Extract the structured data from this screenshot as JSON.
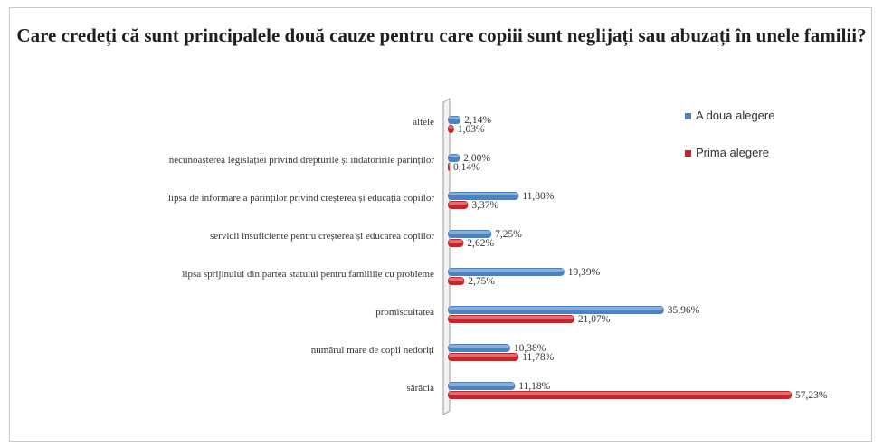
{
  "chart_data": {
    "type": "bar",
    "orientation": "horizontal",
    "title": "Care credeți că sunt principalele două cauze pentru care copiii sunt neglijați sau abuzați în unele familii?",
    "categories": [
      "altele",
      "necunoașterea legislației privind drepturile și îndatoririle părinților",
      "lipsa de informare a părinților privind creșterea și educația copiilor",
      "servicii insuficiente pentru creșterea și educarea copiilor",
      "lipsa sprijinului din partea statului pentru familiile cu probleme",
      "promiscuitatea",
      "numărul mare de copii nedoriți",
      "sărăcia"
    ],
    "series": [
      {
        "name": "A doua alegere",
        "color": "#4f81bd",
        "values": [
          2.14,
          2.0,
          11.8,
          7.25,
          19.39,
          35.96,
          10.38,
          11.18
        ],
        "labels": [
          "2,14%",
          "2,00%",
          "11,80%",
          "7,25%",
          "19,39%",
          "35,96%",
          "10,38%",
          "11,18%"
        ]
      },
      {
        "name": "Prima alegere",
        "color": "#c0282d",
        "values": [
          1.03,
          0.14,
          3.37,
          2.62,
          2.75,
          21.07,
          11.78,
          57.23
        ],
        "labels": [
          "1,03%",
          "0,14%",
          "3,37%",
          "2,62%",
          "2,75%",
          "21,07%",
          "11,78%",
          "57,23%"
        ]
      }
    ],
    "legend": "top-right",
    "grid": false
  }
}
